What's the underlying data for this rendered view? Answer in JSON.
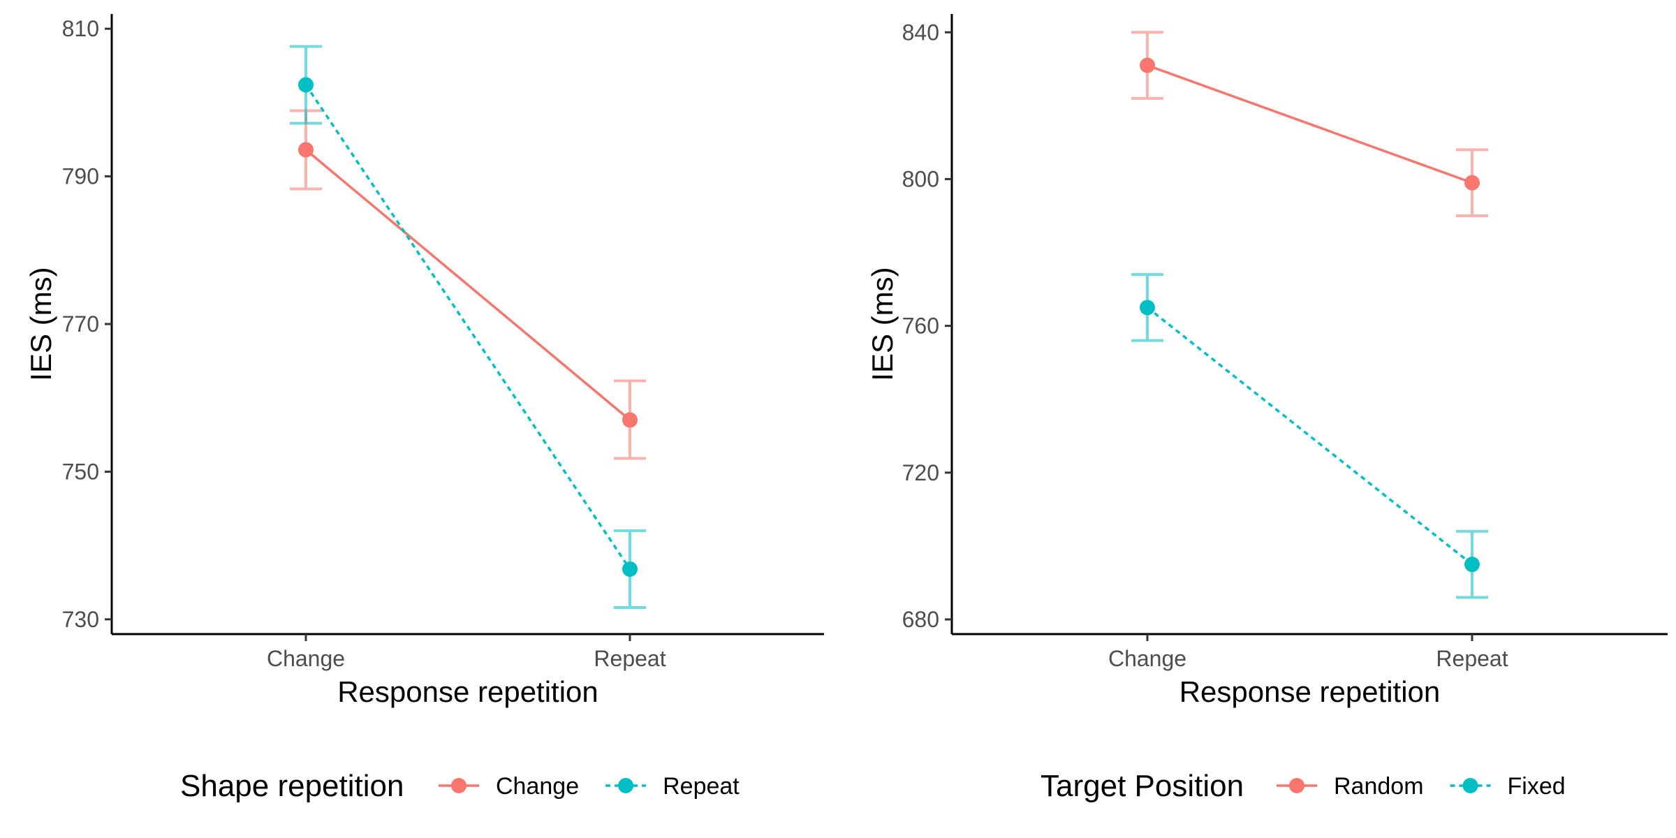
{
  "chart_data": [
    {
      "type": "line",
      "xlabel": "Response repetition",
      "ylabel": "IES (ms)",
      "categories": [
        "Change",
        "Repeat"
      ],
      "ylim": [
        728,
        812
      ],
      "yticks": [
        730,
        750,
        770,
        790,
        810
      ],
      "legend_title": "Shape repetition",
      "legend_position": "bottom",
      "grid": false,
      "series": [
        {
          "name": "Change",
          "color": "#F8766D",
          "linestyle": "solid",
          "values": [
            793.6,
            757.0
          ],
          "err_low": [
            788.3,
            751.8
          ],
          "err_high": [
            798.9,
            762.3
          ]
        },
        {
          "name": "Repeat",
          "color": "#00BFC4",
          "linestyle": "dotted",
          "values": [
            802.4,
            736.8
          ],
          "err_low": [
            797.2,
            731.6
          ],
          "err_high": [
            807.6,
            742.0
          ]
        }
      ]
    },
    {
      "type": "line",
      "xlabel": "Response repetition",
      "ylabel": "IES (ms)",
      "categories": [
        "Change",
        "Repeat"
      ],
      "ylim": [
        676,
        845
      ],
      "yticks": [
        680,
        720,
        760,
        800,
        840
      ],
      "legend_title": "Target Position",
      "legend_position": "bottom",
      "grid": false,
      "series": [
        {
          "name": "Random",
          "color": "#F8766D",
          "linestyle": "solid",
          "values": [
            831,
            799
          ],
          "err_low": [
            822,
            790
          ],
          "err_high": [
            840,
            808
          ]
        },
        {
          "name": "Fixed",
          "color": "#00BFC4",
          "linestyle": "dotted",
          "values": [
            765,
            695
          ],
          "err_low": [
            756,
            686
          ],
          "err_high": [
            774,
            704
          ]
        }
      ]
    }
  ]
}
